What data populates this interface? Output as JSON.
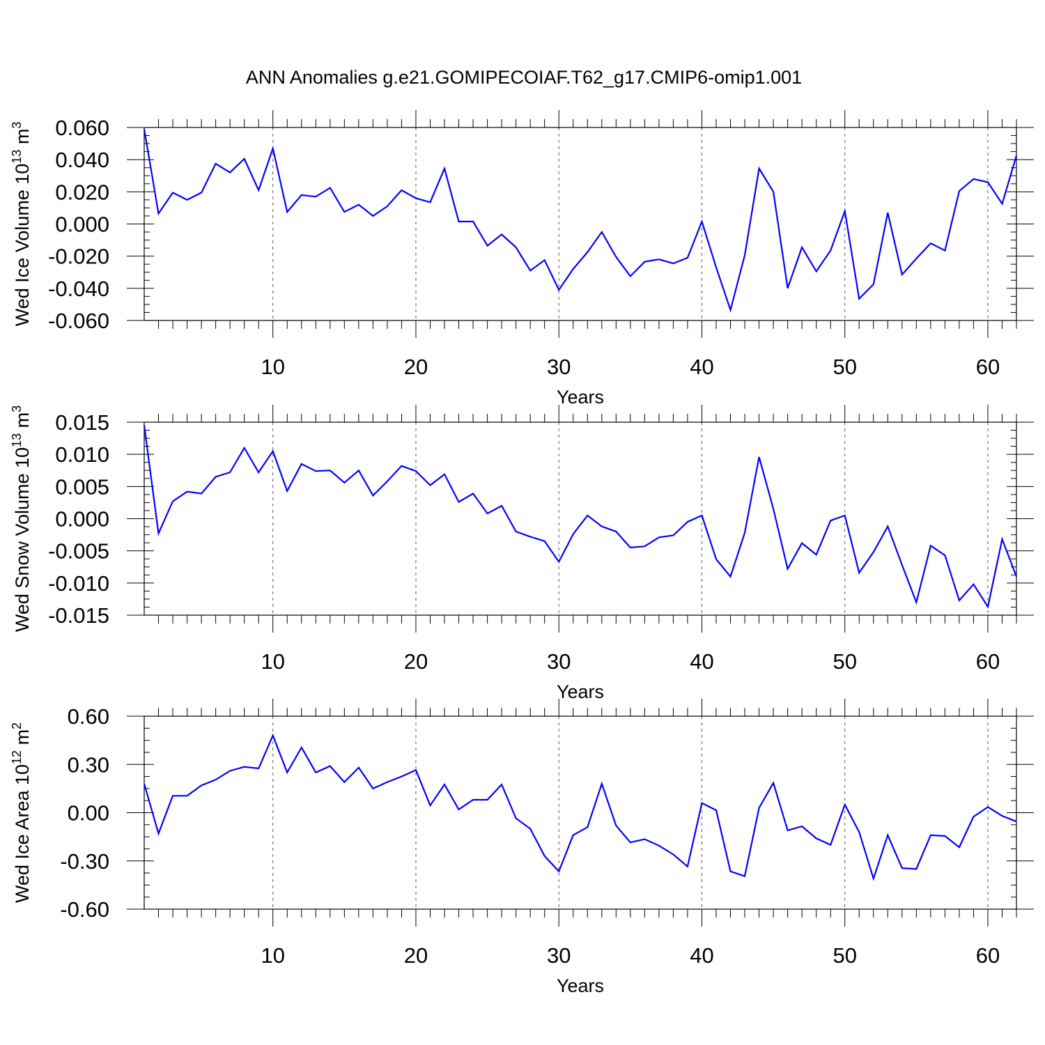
{
  "title": "ANN Anomalies g.e21.GOMIPECOIAF.T62_g17.CMIP6-omip1.001",
  "line_color": "#0000ff",
  "chart_data": [
    {
      "type": "line",
      "ylabel": "Wed Ice Volume 10",
      "ylabel_exp": "13",
      "ylabel_unit": " m",
      "ylabel_unit_exp": "3",
      "xlabel": "Years",
      "xlim": [
        1,
        62
      ],
      "ylim": [
        -0.06,
        0.06
      ],
      "xticks": [
        10,
        20,
        30,
        40,
        50,
        60
      ],
      "yticks": [
        -0.06,
        -0.04,
        -0.02,
        0.0,
        0.02,
        0.04,
        0.06
      ],
      "ytick_labels": [
        "-0.060",
        "-0.040",
        "-0.020",
        "0.000",
        "0.020",
        "0.040",
        "0.060"
      ],
      "x": [
        1,
        2,
        3,
        4,
        5,
        6,
        7,
        8,
        9,
        10,
        11,
        12,
        13,
        14,
        15,
        16,
        17,
        18,
        19,
        20,
        21,
        22,
        23,
        24,
        25,
        26,
        27,
        28,
        29,
        30,
        31,
        32,
        33,
        34,
        35,
        36,
        37,
        38,
        39,
        40,
        41,
        42,
        43,
        44,
        45,
        46,
        47,
        48,
        49,
        50,
        51,
        52,
        53,
        54,
        55,
        56,
        57,
        58,
        59,
        60,
        61,
        62
      ],
      "values": [
        0.059,
        0.0065,
        0.0195,
        0.015,
        0.0195,
        0.0375,
        0.032,
        0.0405,
        0.021,
        0.047,
        0.0075,
        0.018,
        0.017,
        0.0225,
        0.0075,
        0.012,
        0.005,
        0.011,
        0.021,
        0.016,
        0.0135,
        0.0345,
        0.0015,
        0.0015,
        -0.0135,
        -0.0065,
        -0.0145,
        -0.029,
        -0.0225,
        -0.041,
        -0.028,
        -0.0175,
        -0.005,
        -0.0205,
        -0.0325,
        -0.0235,
        -0.022,
        -0.0245,
        -0.021,
        0.0015,
        -0.027,
        -0.0535,
        -0.0195,
        0.0345,
        0.02,
        -0.04,
        -0.0145,
        -0.0295,
        -0.0165,
        0.008,
        -0.0465,
        -0.0375,
        0.007,
        -0.0315,
        -0.0215,
        -0.012,
        -0.0165,
        0.0205,
        0.028,
        0.026,
        0.0125,
        0.0425
      ]
    },
    {
      "type": "line",
      "ylabel": "Wed Snow Volume 10",
      "ylabel_exp": "13",
      "ylabel_unit": " m",
      "ylabel_unit_exp": "3",
      "xlabel": "Years",
      "xlim": [
        1,
        62
      ],
      "ylim": [
        -0.015,
        0.015
      ],
      "xticks": [
        10,
        20,
        30,
        40,
        50,
        60
      ],
      "yticks": [
        -0.015,
        -0.01,
        -0.005,
        0.0,
        0.005,
        0.01,
        0.015
      ],
      "ytick_labels": [
        "-0.015",
        "-0.010",
        "-0.005",
        "0.000",
        "0.005",
        "0.010",
        "0.015"
      ],
      "x": [
        1,
        2,
        3,
        4,
        5,
        6,
        7,
        8,
        9,
        10,
        11,
        12,
        13,
        14,
        15,
        16,
        17,
        18,
        19,
        20,
        21,
        22,
        23,
        24,
        25,
        26,
        27,
        28,
        29,
        30,
        31,
        32,
        33,
        34,
        35,
        36,
        37,
        38,
        39,
        40,
        41,
        42,
        43,
        44,
        45,
        46,
        47,
        48,
        49,
        50,
        51,
        52,
        53,
        54,
        55,
        56,
        57,
        58,
        59,
        60,
        61,
        62
      ],
      "values": [
        0.0145,
        -0.0023,
        0.0027,
        0.0042,
        0.0039,
        0.0065,
        0.0072,
        0.011,
        0.0072,
        0.0105,
        0.0043,
        0.0085,
        0.0074,
        0.0075,
        0.0056,
        0.0075,
        0.0036,
        0.0058,
        0.0082,
        0.0074,
        0.0052,
        0.0069,
        0.0026,
        0.0039,
        0.0008,
        0.002,
        -0.002,
        -0.0028,
        -0.0035,
        -0.0067,
        -0.0024,
        0.0005,
        -0.0012,
        -0.002,
        -0.0045,
        -0.0043,
        -0.0029,
        -0.0026,
        -0.0005,
        0.0005,
        -0.0063,
        -0.009,
        -0.0022,
        0.0096,
        0.0015,
        -0.0078,
        -0.0038,
        -0.0056,
        -0.0003,
        0.0005,
        -0.0084,
        -0.0052,
        -0.0012,
        -0.0072,
        -0.013,
        -0.0042,
        -0.0057,
        -0.0127,
        -0.0102,
        -0.0137,
        -0.0032,
        -0.009
      ]
    },
    {
      "type": "line",
      "ylabel": "Wed Ice Area 10",
      "ylabel_exp": "12",
      "ylabel_unit": " m",
      "ylabel_unit_exp": "2",
      "xlabel": "Years",
      "xlim": [
        1,
        62
      ],
      "ylim": [
        -0.6,
        0.6
      ],
      "xticks": [
        10,
        20,
        30,
        40,
        50,
        60
      ],
      "yticks": [
        -0.6,
        -0.3,
        0.0,
        0.3,
        0.6
      ],
      "ytick_labels": [
        "-0.60",
        "-0.30",
        "0.00",
        "0.30",
        "0.60"
      ],
      "x": [
        1,
        2,
        3,
        4,
        5,
        6,
        7,
        8,
        9,
        10,
        11,
        12,
        13,
        14,
        15,
        16,
        17,
        18,
        19,
        20,
        21,
        22,
        23,
        24,
        25,
        26,
        27,
        28,
        29,
        30,
        31,
        32,
        33,
        34,
        35,
        36,
        37,
        38,
        39,
        40,
        41,
        42,
        43,
        44,
        45,
        46,
        47,
        48,
        49,
        50,
        51,
        52,
        53,
        54,
        55,
        56,
        57,
        58,
        59,
        60,
        61,
        62
      ],
      "values": [
        0.18,
        -0.13,
        0.105,
        0.105,
        0.17,
        0.205,
        0.26,
        0.285,
        0.275,
        0.48,
        0.25,
        0.405,
        0.25,
        0.29,
        0.19,
        0.28,
        0.15,
        0.19,
        0.225,
        0.265,
        0.045,
        0.175,
        0.02,
        0.08,
        0.08,
        0.175,
        -0.035,
        -0.1,
        -0.27,
        -0.365,
        -0.14,
        -0.09,
        0.18,
        -0.08,
        -0.185,
        -0.165,
        -0.205,
        -0.26,
        -0.335,
        0.06,
        0.015,
        -0.365,
        -0.395,
        0.03,
        0.185,
        -0.11,
        -0.085,
        -0.16,
        -0.2,
        0.05,
        -0.12,
        -0.41,
        -0.14,
        -0.345,
        -0.35,
        -0.14,
        -0.145,
        -0.215,
        -0.025,
        0.035,
        -0.02,
        -0.055
      ]
    }
  ]
}
